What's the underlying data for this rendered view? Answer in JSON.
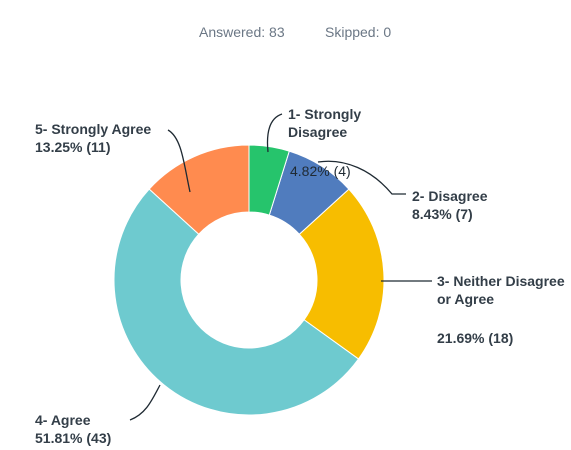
{
  "answered": "Answered: 83",
  "skipped": "Skipped: 0",
  "chart_data": {
    "type": "pie",
    "categories": [
      "1- Strongly Disagree",
      "2- Disagree",
      "3- Neither Disagree or Agree",
      "4- Agree",
      "5- Strongly Agree"
    ],
    "values": [
      4.82,
      8.43,
      21.69,
      51.81,
      13.25
    ],
    "value_labels": [
      "4.82% (4)",
      "8.43% (7)",
      "21.69% (18)",
      "51.81% (43)",
      "13.25% (11)"
    ],
    "colors": [
      "#26c46c",
      "#507cbe",
      "#f7bd00",
      "#6ecacf",
      "#ff8b4f"
    ]
  }
}
